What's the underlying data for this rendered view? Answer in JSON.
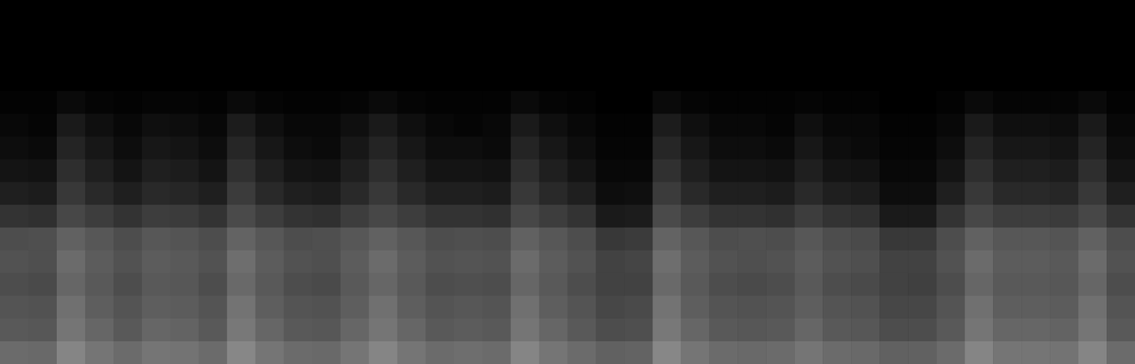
{
  "chart_data": {
    "type": "heatmap",
    "tick_labels": false,
    "zlim": [
      0,
      100
    ],
    "values": [
      [
        0,
        0,
        0,
        0,
        0,
        0,
        0,
        0,
        0,
        0,
        0,
        0,
        0,
        0,
        0,
        0,
        0,
        0,
        0,
        0,
        0,
        0,
        0,
        0,
        0,
        0,
        0,
        0,
        0,
        0,
        0,
        0,
        0,
        0,
        0,
        0,
        0,
        0,
        0,
        0
      ],
      [
        0,
        0,
        0,
        0,
        0,
        0,
        0,
        0,
        0,
        0,
        0,
        0,
        0,
        0,
        0,
        0,
        0,
        0,
        0,
        0,
        0,
        0,
        0,
        0,
        0,
        0,
        0,
        0,
        0,
        0,
        0,
        0,
        0,
        0,
        0,
        0,
        0,
        0,
        0,
        0
      ],
      [
        0,
        0,
        0,
        0,
        0,
        0,
        0,
        0,
        0,
        0,
        0,
        0,
        0,
        0,
        0,
        0,
        0,
        0,
        0,
        0,
        0,
        0,
        0,
        0,
        0,
        0,
        0,
        0,
        0,
        0,
        0,
        0,
        0,
        0,
        0,
        0,
        0,
        0,
        0,
        0
      ],
      [
        0,
        0,
        0,
        0,
        0,
        0,
        0,
        0,
        0,
        0,
        0,
        0,
        0,
        0,
        0,
        0,
        0,
        0,
        0,
        0,
        0,
        0,
        0,
        0,
        0,
        0,
        0,
        0,
        0,
        0,
        0,
        0,
        0,
        0,
        0,
        0,
        0,
        0,
        0,
        0
      ],
      [
        1,
        1,
        4,
        2,
        1,
        2,
        2,
        1,
        4,
        2,
        1,
        1,
        2,
        4,
        2,
        1,
        1,
        1,
        4,
        2,
        1,
        0,
        0,
        4,
        2,
        1,
        1,
        1,
        2,
        1,
        1,
        0,
        0,
        1,
        4,
        2,
        2,
        2,
        4,
        1
      ],
      [
        3,
        2,
        10,
        6,
        3,
        6,
        5,
        3,
        11,
        6,
        3,
        3,
        6,
        10,
        6,
        3,
        2,
        3,
        10,
        6,
        3,
        1,
        1,
        11,
        6,
        3,
        3,
        2,
        6,
        3,
        3,
        1,
        1,
        3,
        10,
        6,
        6,
        5,
        10,
        3
      ],
      [
        5,
        4,
        14,
        9,
        5,
        9,
        8,
        5,
        15,
        9,
        5,
        4,
        9,
        14,
        9,
        5,
        5,
        4,
        14,
        9,
        5,
        2,
        2,
        15,
        9,
        5,
        5,
        4,
        9,
        5,
        4,
        2,
        2,
        5,
        14,
        9,
        9,
        8,
        14,
        5
      ],
      [
        8,
        7,
        18,
        12,
        8,
        12,
        11,
        8,
        19,
        12,
        8,
        7,
        12,
        18,
        12,
        8,
        8,
        7,
        18,
        12,
        8,
        3,
        3,
        19,
        12,
        8,
        8,
        7,
        12,
        8,
        7,
        3,
        3,
        8,
        18,
        12,
        12,
        11,
        18,
        8
      ],
      [
        12,
        11,
        22,
        16,
        12,
        16,
        15,
        12,
        23,
        16,
        12,
        11,
        16,
        22,
        16,
        12,
        12,
        11,
        22,
        16,
        12,
        5,
        6,
        23,
        16,
        12,
        12,
        11,
        16,
        12,
        11,
        5,
        5,
        12,
        22,
        16,
        16,
        15,
        22,
        12
      ],
      [
        20,
        19,
        28,
        24,
        20,
        24,
        23,
        20,
        29,
        24,
        20,
        19,
        24,
        28,
        24,
        20,
        20,
        19,
        28,
        24,
        20,
        10,
        11,
        29,
        24,
        20,
        20,
        19,
        24,
        20,
        19,
        10,
        10,
        20,
        28,
        24,
        24,
        23,
        28,
        20
      ],
      [
        30,
        31,
        38,
        34,
        30,
        34,
        33,
        30,
        39,
        34,
        30,
        31,
        34,
        38,
        34,
        30,
        31,
        30,
        38,
        34,
        30,
        22,
        23,
        39,
        34,
        30,
        31,
        30,
        34,
        30,
        29,
        22,
        22,
        30,
        38,
        34,
        34,
        33,
        38,
        30
      ],
      [
        32,
        31,
        42,
        36,
        32,
        36,
        35,
        32,
        43,
        36,
        32,
        31,
        36,
        42,
        36,
        32,
        33,
        32,
        42,
        36,
        32,
        26,
        27,
        43,
        36,
        32,
        31,
        32,
        36,
        32,
        31,
        26,
        26,
        32,
        42,
        36,
        36,
        35,
        42,
        32
      ],
      [
        30,
        29,
        40,
        35,
        30,
        35,
        34,
        30,
        41,
        35,
        30,
        29,
        35,
        40,
        35,
        30,
        31,
        30,
        40,
        35,
        30,
        26,
        26,
        41,
        35,
        30,
        29,
        30,
        35,
        30,
        29,
        26,
        25,
        30,
        40,
        35,
        35,
        34,
        40,
        30
      ],
      [
        33,
        32,
        44,
        37,
        33,
        37,
        36,
        33,
        45,
        37,
        33,
        32,
        37,
        44,
        37,
        33,
        34,
        33,
        44,
        37,
        33,
        28,
        29,
        45,
        37,
        33,
        32,
        33,
        37,
        33,
        32,
        28,
        28,
        33,
        44,
        37,
        37,
        36,
        44,
        33
      ],
      [
        35,
        34,
        46,
        40,
        35,
        40,
        39,
        35,
        47,
        40,
        35,
        34,
        40,
        46,
        40,
        35,
        36,
        35,
        46,
        40,
        35,
        30,
        31,
        47,
        40,
        35,
        34,
        35,
        40,
        35,
        34,
        30,
        30,
        35,
        46,
        40,
        40,
        39,
        46,
        35
      ],
      [
        42,
        41,
        52,
        46,
        42,
        46,
        45,
        42,
        53,
        46,
        42,
        41,
        46,
        52,
        46,
        42,
        43,
        42,
        52,
        46,
        42,
        38,
        39,
        53,
        46,
        42,
        41,
        42,
        46,
        42,
        41,
        38,
        38,
        42,
        52,
        46,
        46,
        45,
        52,
        42
      ]
    ]
  }
}
